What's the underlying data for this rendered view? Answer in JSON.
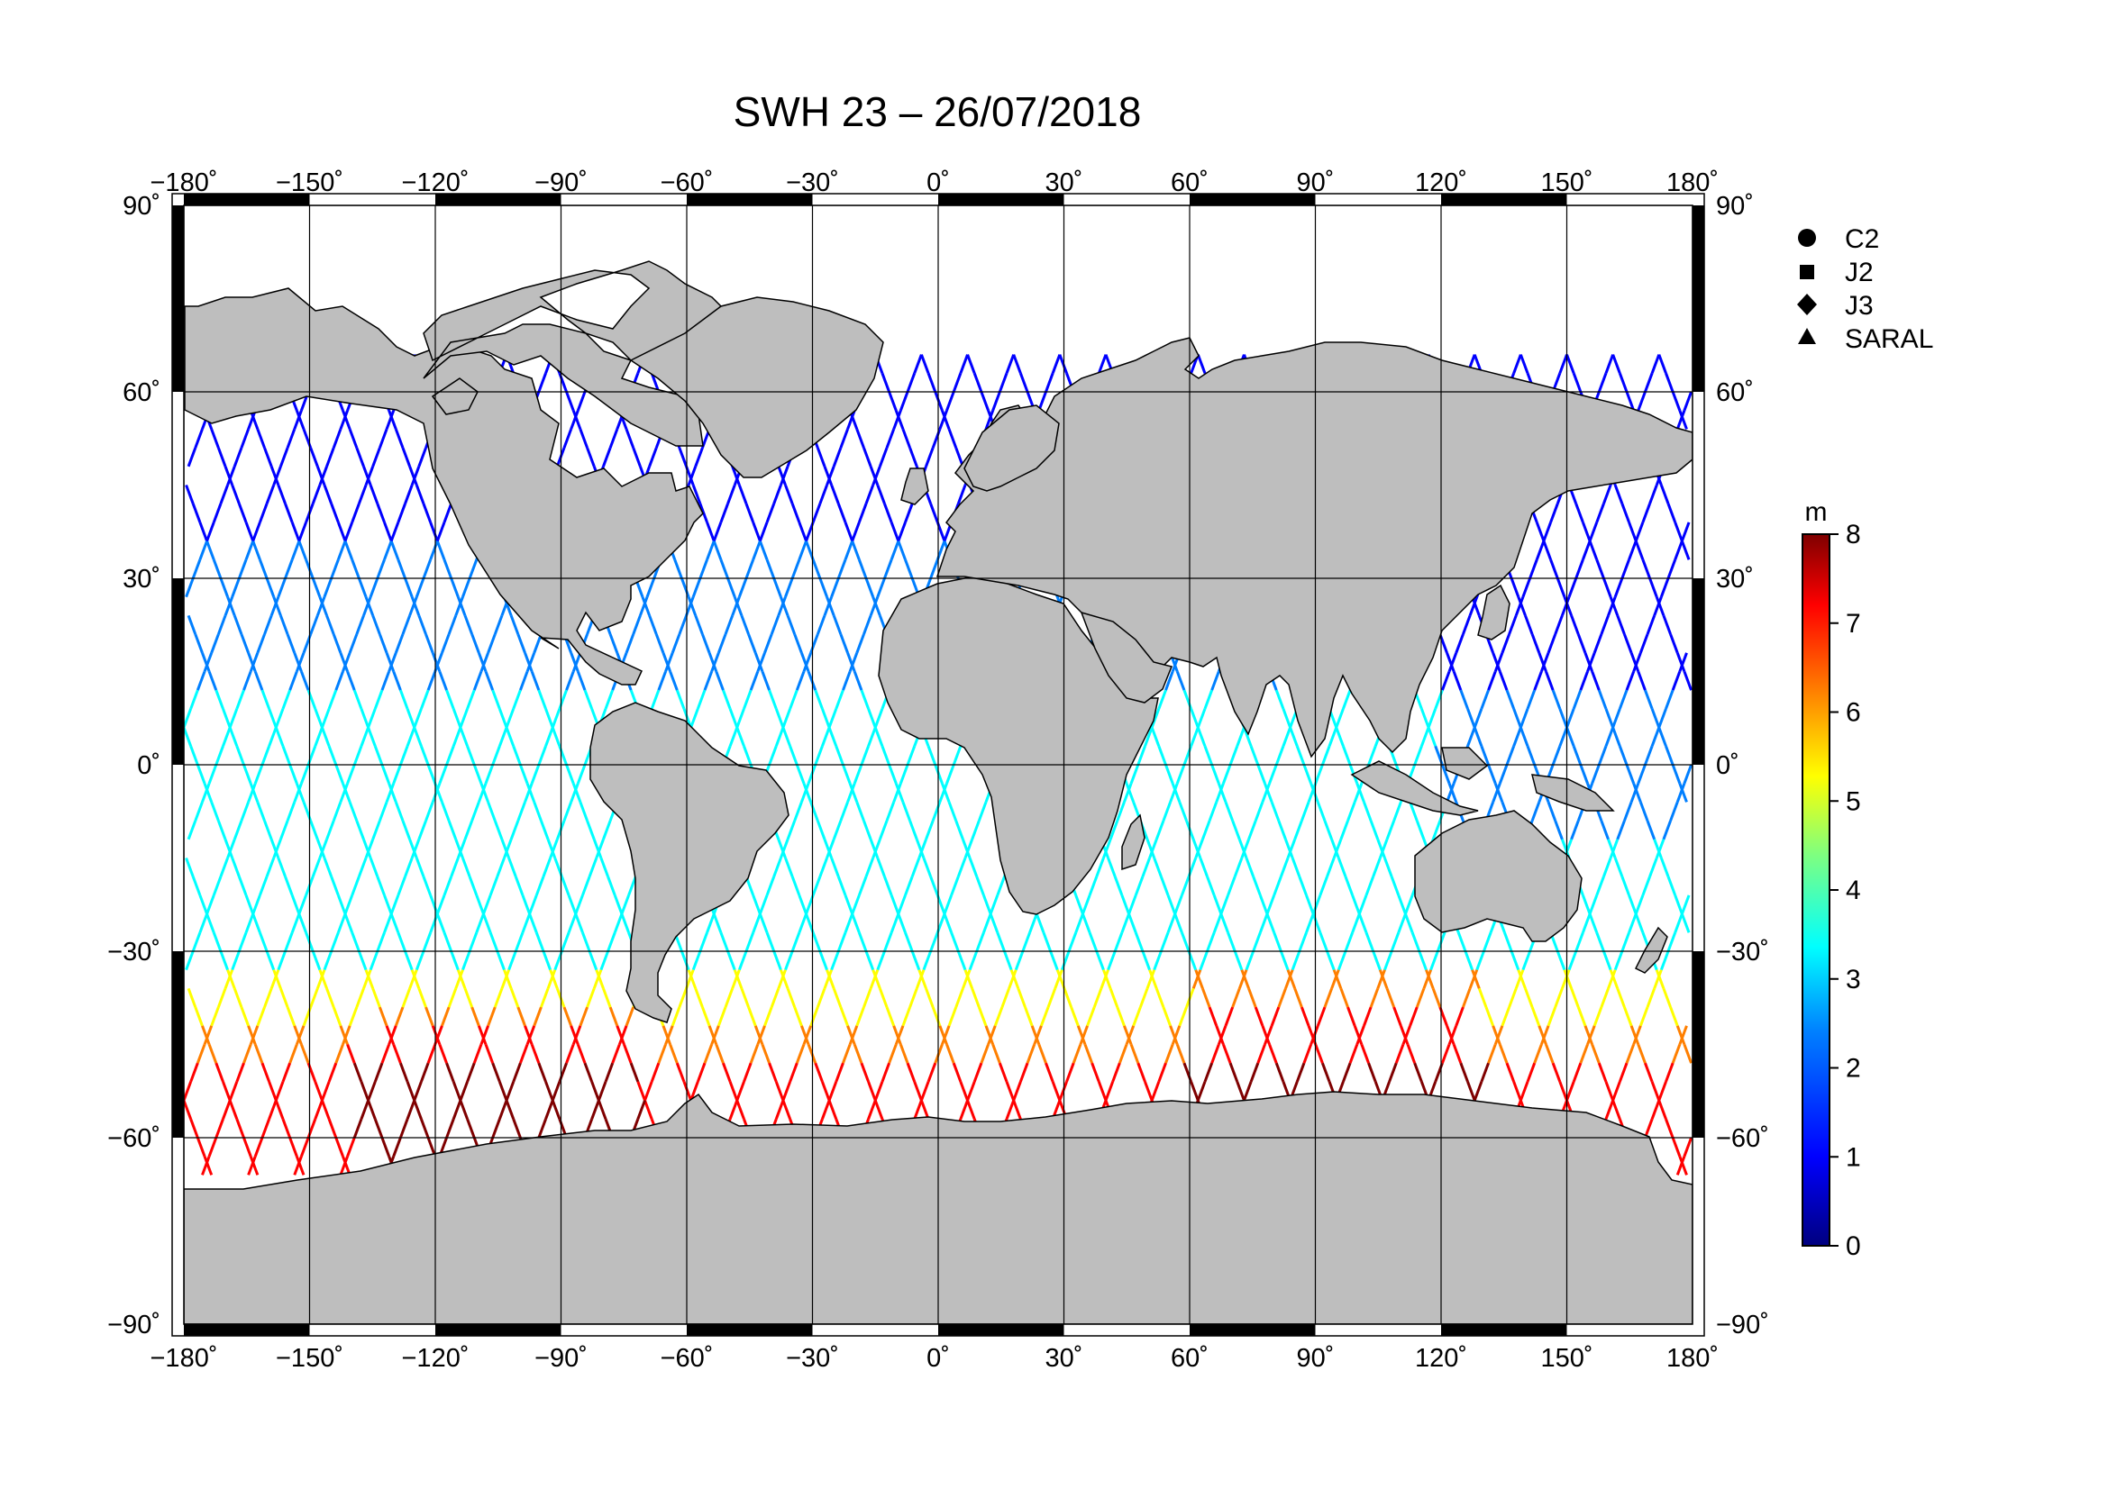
{
  "title": "SWH 23 – 26/07/2018",
  "map": {
    "lon_range": [
      -180,
      180
    ],
    "lat_range": [
      -90,
      90
    ],
    "lon_ticks": [
      "−180˚",
      "−150˚",
      "−120˚",
      "−90˚",
      "−60˚",
      "−30˚",
      "0˚",
      "30˚",
      "60˚",
      "90˚",
      "120˚",
      "150˚",
      "180˚"
    ],
    "lat_ticks": [
      "90˚",
      "60˚",
      "30˚",
      "0˚",
      "−30˚",
      "−60˚",
      "−90˚"
    ],
    "grid": true,
    "land_color": "#bebebe",
    "ocean_color": "#ffffff"
  },
  "legend": {
    "items": [
      {
        "symbol": "circle",
        "label": "C2"
      },
      {
        "symbol": "square",
        "label": "J2"
      },
      {
        "symbol": "diamond",
        "label": "J3"
      },
      {
        "symbol": "triangle",
        "label": "SARAL"
      }
    ]
  },
  "colorbar": {
    "unit": "m",
    "min": 0,
    "max": 8,
    "ticks": [
      "8",
      "7",
      "6",
      "5",
      "4",
      "3",
      "2",
      "1",
      "0"
    ],
    "colors": [
      "#00007f",
      "#0000ff",
      "#007fff",
      "#00ffff",
      "#7fff7f",
      "#ffff00",
      "#ff7f00",
      "#ff0000",
      "#7f0000"
    ]
  }
}
